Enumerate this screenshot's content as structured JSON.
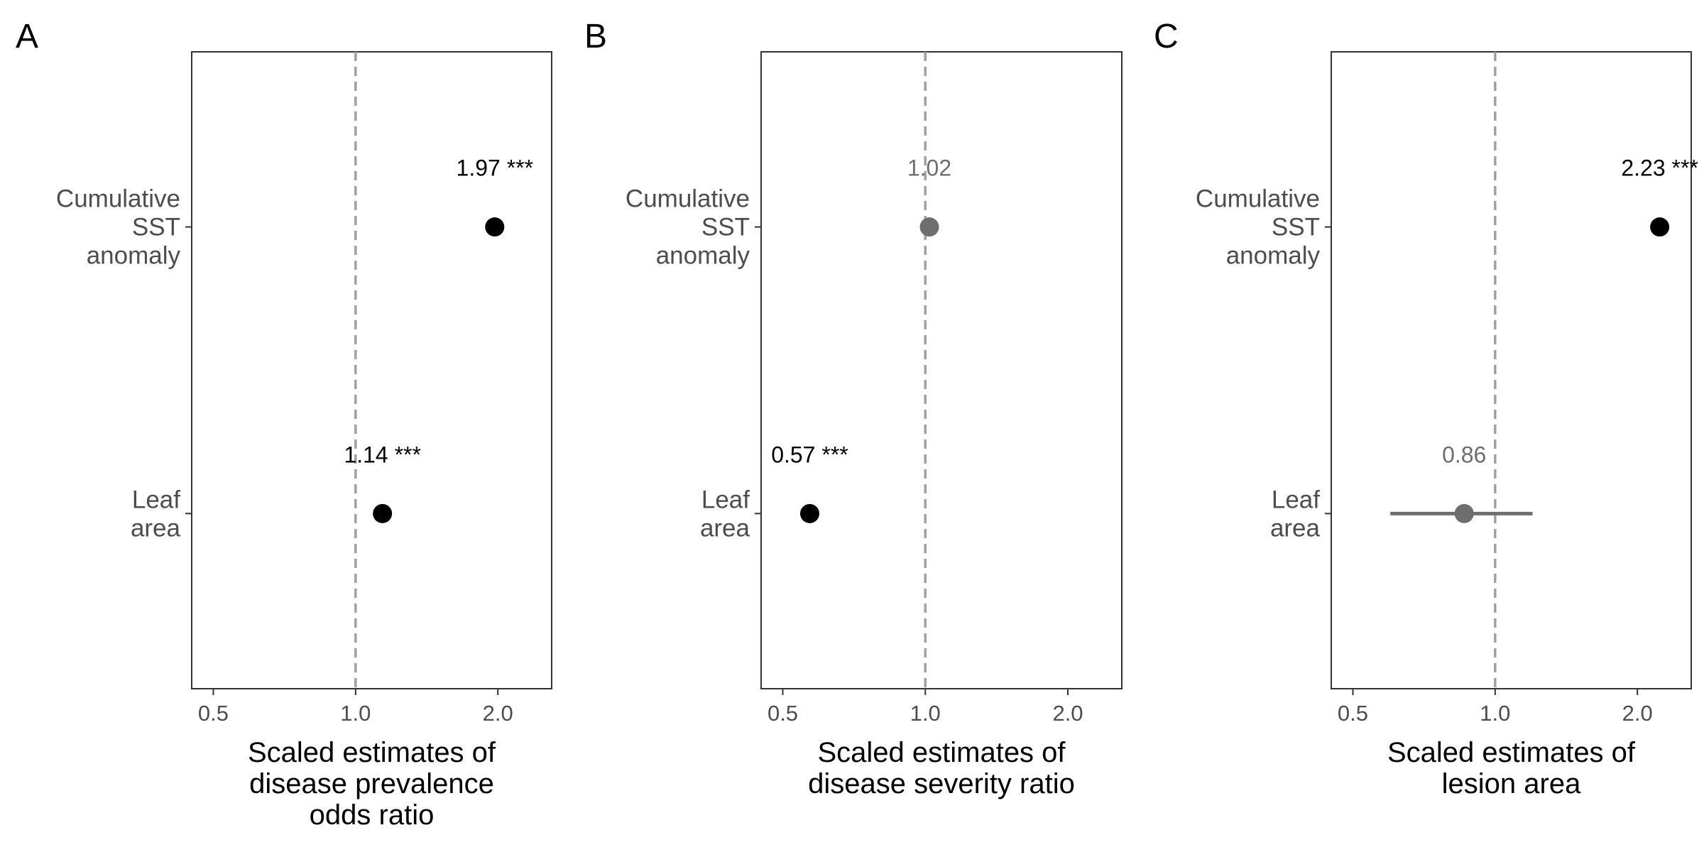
{
  "colors": {
    "significant": "#000000",
    "not_significant": "#6e6e6e",
    "reference_line": "#a0a0a0",
    "frame": "#333333",
    "tick_text": "#4d4d4d"
  },
  "chart_data": [
    {
      "type": "scatter",
      "panel": "A",
      "x_scale": "log",
      "xlim": [
        0.45,
        2.6
      ],
      "xticks": [
        0.5,
        1.0,
        2.0
      ],
      "xtick_labels": [
        "0.5",
        "1.0",
        "2.0"
      ],
      "reference_x": 1.0,
      "xlabel_lines": [
        "Scaled estimates of",
        "disease prevalence",
        "odds ratio"
      ],
      "categories": [
        {
          "label_lines": [
            "Cumulative",
            "SST",
            "anomaly"
          ],
          "value": 1.97,
          "ci": [
            1.97,
            1.97
          ],
          "label": "1.97 ***",
          "significant": true
        },
        {
          "label_lines": [
            "Leaf",
            "area"
          ],
          "value": 1.14,
          "ci": [
            1.14,
            1.14
          ],
          "label": "1.14 ***",
          "significant": true
        }
      ],
      "grid": false,
      "legend": "none"
    },
    {
      "type": "scatter",
      "panel": "B",
      "x_scale": "log",
      "xlim": [
        0.45,
        2.6
      ],
      "xticks": [
        0.5,
        1.0,
        2.0
      ],
      "xtick_labels": [
        "0.5",
        "1.0",
        "2.0"
      ],
      "reference_x": 1.0,
      "xlabel_lines": [
        "Scaled estimates of",
        "disease severity ratio"
      ],
      "categories": [
        {
          "label_lines": [
            "Cumulative",
            "SST",
            "anomaly"
          ],
          "value": 1.02,
          "ci": [
            1.02,
            1.02
          ],
          "label": "1.02",
          "significant": false
        },
        {
          "label_lines": [
            "Leaf",
            "area"
          ],
          "value": 0.57,
          "ci": [
            0.57,
            0.57
          ],
          "label": "0.57 ***",
          "significant": true
        }
      ],
      "grid": false,
      "legend": "none"
    },
    {
      "type": "scatter",
      "panel": "C",
      "x_scale": "log",
      "xlim": [
        0.45,
        2.6
      ],
      "xticks": [
        0.5,
        1.0,
        2.0
      ],
      "xtick_labels": [
        "0.5",
        "1.0",
        "2.0"
      ],
      "reference_x": 1.0,
      "xlabel_lines": [
        "Scaled estimates of",
        "lesion area"
      ],
      "categories": [
        {
          "label_lines": [
            "Cumulative",
            "SST",
            "anomaly"
          ],
          "value": 2.23,
          "ci": [
            2.23,
            2.23
          ],
          "label": "2.23 ***",
          "significant": true
        },
        {
          "label_lines": [
            "Leaf",
            "area"
          ],
          "value": 0.86,
          "ci": [
            0.6,
            1.2
          ],
          "label": "0.86",
          "significant": false
        }
      ],
      "grid": false,
      "legend": "none"
    }
  ]
}
